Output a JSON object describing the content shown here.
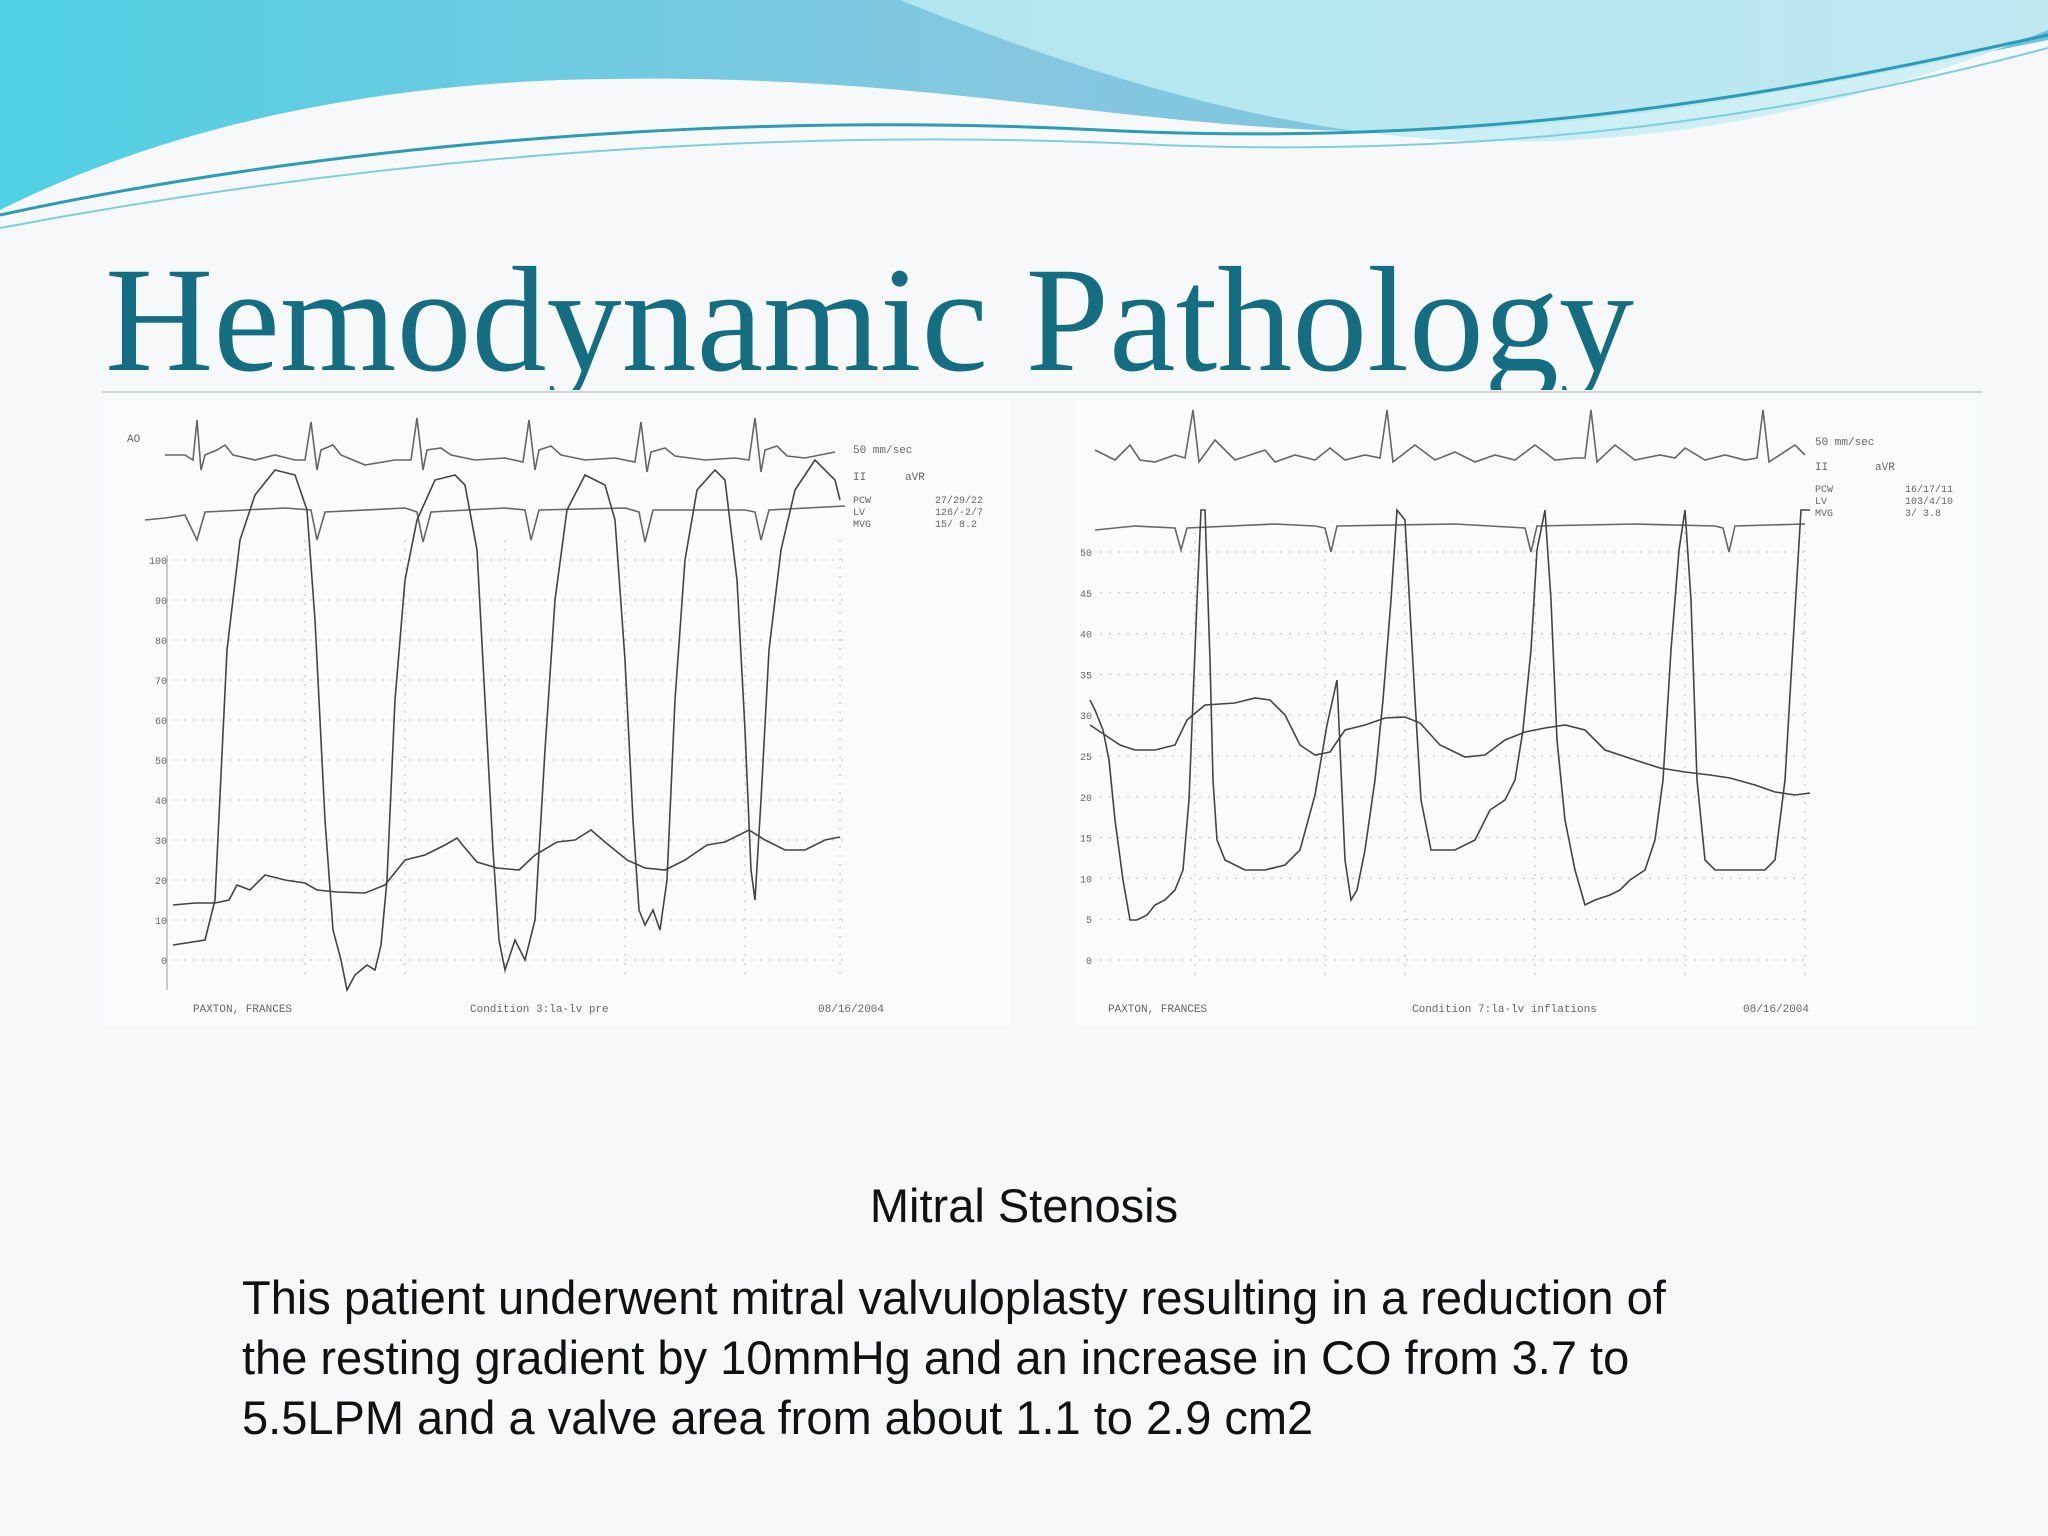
{
  "slide": {
    "title": "Hemodynamic Pathology",
    "subtitle": "Mitral Stenosis",
    "body_lines": [
      "This patient underwent mitral valvuloplasty resulting in a reduction of",
      "the resting gradient by 10mmHg and an  increase in CO from 3.7 to",
      "5.5LPM and a valve area from about 1.1 to 2.9 cm2"
    ]
  },
  "tracing_left": {
    "corner_label": "AO",
    "speed": "50 mm/sec",
    "lead_left": "II",
    "lead_right": "aVR",
    "readouts": [
      {
        "label": "PCW",
        "value": "27/29/22"
      },
      {
        "label": "LV",
        "value": "126/-2/7"
      },
      {
        "label": "MVG",
        "value": "15/ 8.2"
      }
    ],
    "y_ticks": [
      "100",
      "90",
      "80",
      "70",
      "60",
      "50",
      "40",
      "30",
      "20",
      "10",
      "0"
    ],
    "patient": "PAXTON, FRANCES",
    "condition": "Condition 3:la-lv pre",
    "date": "08/16/2004"
  },
  "tracing_right": {
    "speed": "50 mm/sec",
    "lead_left": "II",
    "lead_right": "aVR",
    "readouts": [
      {
        "label": "PCW",
        "value": "16/17/11"
      },
      {
        "label": "LV",
        "value": "103/4/10"
      },
      {
        "label": "MVG",
        "value": "3/ 3.8"
      }
    ],
    "y_ticks": [
      "50",
      "45",
      "40",
      "35",
      "30",
      "25",
      "20",
      "15",
      "10",
      "5",
      "0"
    ],
    "patient": "PAXTON, FRANCES",
    "condition": "Condition 7:la-lv inflations",
    "date": "08/16/2004"
  },
  "colors": {
    "title": "#156d82",
    "wave_dark": "#5fc8dd",
    "wave_light": "#9fdbe8"
  }
}
